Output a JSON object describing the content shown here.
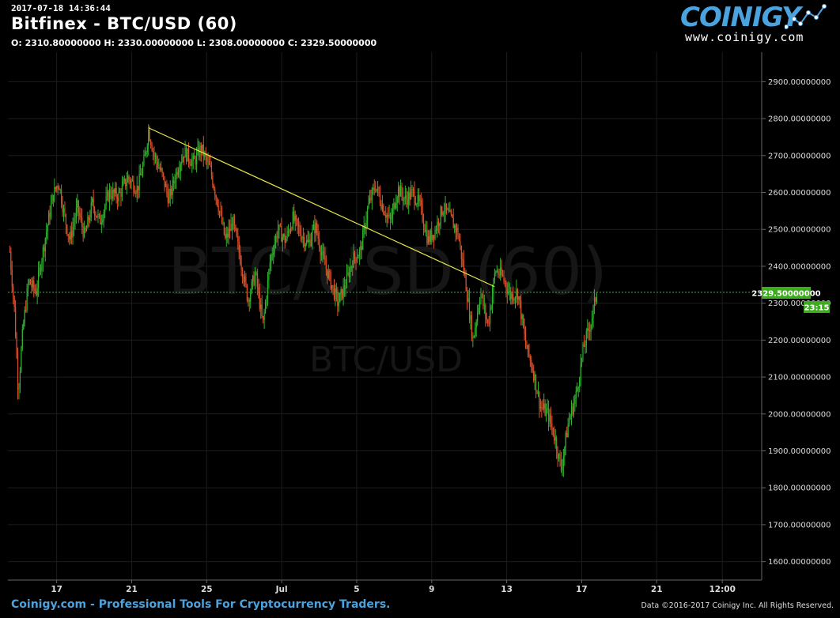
{
  "header": {
    "timestamp": "2017-07-18 14:36:44",
    "title": "Bitfinex - BTC/USD (60)",
    "ohlc": "O: 2310.80000000 H: 2330.00000000 L: 2308.00000000 C: 2329.50000000"
  },
  "logo": {
    "word": "COINIGY",
    "url": "www.coinigy.com"
  },
  "watermark": {
    "big": "BTC/USD (60)",
    "small": "BTC/USD"
  },
  "footer": {
    "left": "Coinigy.com - Professional Tools For Cryptocurrency Traders.",
    "right": "Data ©2016-2017 Coinigy Inc. All Rights Reserved."
  },
  "price_marker": {
    "value": "2329.50000000",
    "countdown": "23:15"
  },
  "colors": {
    "up": "#2fb52f",
    "down": "#e0502a",
    "trendline": "#e8e84a",
    "marker": "#3cab1e",
    "accent": "#4aa3df"
  },
  "chart_data": {
    "type": "candlestick",
    "ylim": [
      1550,
      2980
    ],
    "y_ticks": [
      1600,
      1700,
      1800,
      1900,
      2000,
      2100,
      2200,
      2300,
      2400,
      2500,
      2600,
      2700,
      2800,
      2900
    ],
    "y_tick_labels": [
      "1600.00000000",
      "1700.00000000",
      "1800.00000000",
      "1900.00000000",
      "2000.00000000",
      "2100.00000000",
      "2200.00000000",
      "2300.00000000",
      "2400.00000000",
      "2500.00000000",
      "2600.00000000",
      "2700.00000000",
      "2800.00000000",
      "2900.00000000"
    ],
    "x_ticks": [
      "17",
      "21",
      "25",
      "Jul",
      "5",
      "9",
      "13",
      "17",
      "21",
      "12:00"
    ],
    "last_price": 2329.5,
    "trendline": [
      {
        "t": 20.9,
        "y": 2775
      },
      {
        "t": 39.35,
        "y": 2345
      }
    ],
    "series_path": [
      {
        "t": 13.5,
        "y": 2440
      },
      {
        "t": 13.75,
        "y": 2280
      },
      {
        "t": 13.95,
        "y": 2060
      },
      {
        "t": 14.2,
        "y": 2230
      },
      {
        "t": 14.5,
        "y": 2360
      },
      {
        "t": 14.9,
        "y": 2330
      },
      {
        "t": 15.4,
        "y": 2480
      },
      {
        "t": 15.8,
        "y": 2590
      },
      {
        "t": 16.1,
        "y": 2630
      },
      {
        "t": 16.4,
        "y": 2540
      },
      {
        "t": 16.7,
        "y": 2470
      },
      {
        "t": 17.1,
        "y": 2560
      },
      {
        "t": 17.5,
        "y": 2480
      },
      {
        "t": 17.9,
        "y": 2570
      },
      {
        "t": 18.3,
        "y": 2520
      },
      {
        "t": 18.8,
        "y": 2600
      },
      {
        "t": 19.3,
        "y": 2590
      },
      {
        "t": 19.8,
        "y": 2640
      },
      {
        "t": 20.3,
        "y": 2610
      },
      {
        "t": 20.7,
        "y": 2690
      },
      {
        "t": 20.9,
        "y": 2770
      },
      {
        "t": 21.2,
        "y": 2700
      },
      {
        "t": 21.6,
        "y": 2650
      },
      {
        "t": 22.0,
        "y": 2580
      },
      {
        "t": 22.4,
        "y": 2660
      },
      {
        "t": 22.8,
        "y": 2710
      },
      {
        "t": 23.3,
        "y": 2680
      },
      {
        "t": 23.7,
        "y": 2720
      },
      {
        "t": 24.2,
        "y": 2660
      },
      {
        "t": 24.6,
        "y": 2570
      },
      {
        "t": 25.0,
        "y": 2470
      },
      {
        "t": 25.4,
        "y": 2520
      },
      {
        "t": 25.8,
        "y": 2420
      },
      {
        "t": 26.2,
        "y": 2310
      },
      {
        "t": 26.6,
        "y": 2380
      },
      {
        "t": 27.0,
        "y": 2240
      },
      {
        "t": 27.4,
        "y": 2420
      },
      {
        "t": 27.8,
        "y": 2500
      },
      {
        "t": 28.2,
        "y": 2470
      },
      {
        "t": 28.6,
        "y": 2530
      },
      {
        "t": 29.0,
        "y": 2490
      },
      {
        "t": 29.4,
        "y": 2460
      },
      {
        "t": 29.8,
        "y": 2510
      },
      {
        "t": 30.2,
        "y": 2420
      },
      {
        "t": 30.6,
        "y": 2360
      },
      {
        "t": 31.0,
        "y": 2300
      },
      {
        "t": 31.4,
        "y": 2350
      },
      {
        "t": 31.8,
        "y": 2420
      },
      {
        "t": 32.2,
        "y": 2440
      },
      {
        "t": 32.6,
        "y": 2560
      },
      {
        "t": 33.0,
        "y": 2620
      },
      {
        "t": 33.4,
        "y": 2560
      },
      {
        "t": 33.8,
        "y": 2520
      },
      {
        "t": 34.2,
        "y": 2610
      },
      {
        "t": 34.6,
        "y": 2580
      },
      {
        "t": 35.0,
        "y": 2600
      },
      {
        "t": 35.4,
        "y": 2560
      },
      {
        "t": 35.8,
        "y": 2470
      },
      {
        "t": 36.2,
        "y": 2500
      },
      {
        "t": 36.6,
        "y": 2560
      },
      {
        "t": 37.0,
        "y": 2530
      },
      {
        "t": 37.4,
        "y": 2490
      },
      {
        "t": 37.8,
        "y": 2360
      },
      {
        "t": 38.2,
        "y": 2200
      },
      {
        "t": 38.6,
        "y": 2330
      },
      {
        "t": 39.0,
        "y": 2240
      },
      {
        "t": 39.4,
        "y": 2390
      },
      {
        "t": 39.8,
        "y": 2370
      },
      {
        "t": 40.2,
        "y": 2320
      },
      {
        "t": 40.6,
        "y": 2330
      },
      {
        "t": 41.0,
        "y": 2190
      },
      {
        "t": 41.4,
        "y": 2120
      },
      {
        "t": 41.8,
        "y": 2020
      },
      {
        "t": 42.2,
        "y": 2000
      },
      {
        "t": 42.6,
        "y": 1930
      },
      {
        "t": 42.9,
        "y": 1850
      },
      {
        "t": 43.3,
        "y": 1980
      },
      {
        "t": 43.7,
        "y": 2050
      },
      {
        "t": 44.1,
        "y": 2180
      },
      {
        "t": 44.5,
        "y": 2250
      },
      {
        "t": 44.8,
        "y": 2329.5
      }
    ],
    "x_tick_positions": [
      16,
      20,
      24,
      28,
      32,
      36,
      40,
      44,
      48,
      51.5
    ],
    "x_range": [
      13.4,
      53.6
    ]
  }
}
